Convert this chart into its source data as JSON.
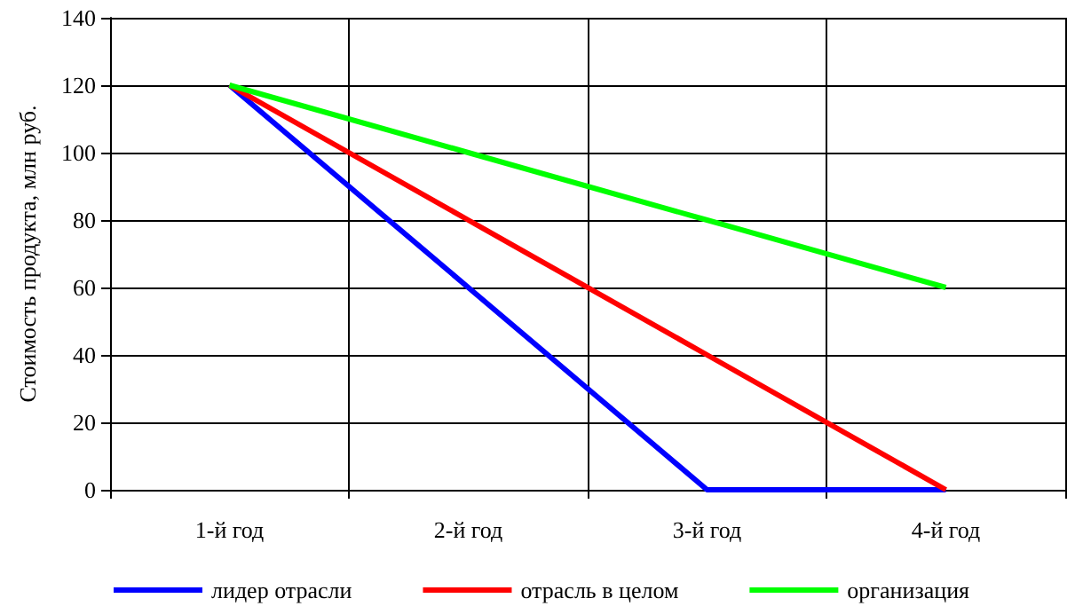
{
  "chart_data": {
    "type": "line",
    "ylabel": "Стоимость продукта, млн руб.",
    "categories": [
      "1-й год",
      "2-й год",
      "3-й год",
      "4-й год"
    ],
    "series": [
      {
        "name": "лидер отрасли",
        "color": "#0000ff",
        "values": [
          120,
          60,
          0,
          0
        ]
      },
      {
        "name": "отрасль в целом",
        "color": "#ff0000",
        "values": [
          120,
          80,
          40,
          0
        ]
      },
      {
        "name": "организация",
        "color": "#00ff00",
        "values": [
          120,
          100,
          80,
          60
        ]
      }
    ],
    "ylim": [
      0,
      140
    ],
    "yticks": [
      0,
      20,
      40,
      60,
      80,
      100,
      120,
      140
    ],
    "grid": true,
    "legend": "bottom",
    "marker": "none",
    "line_style": "solid"
  }
}
